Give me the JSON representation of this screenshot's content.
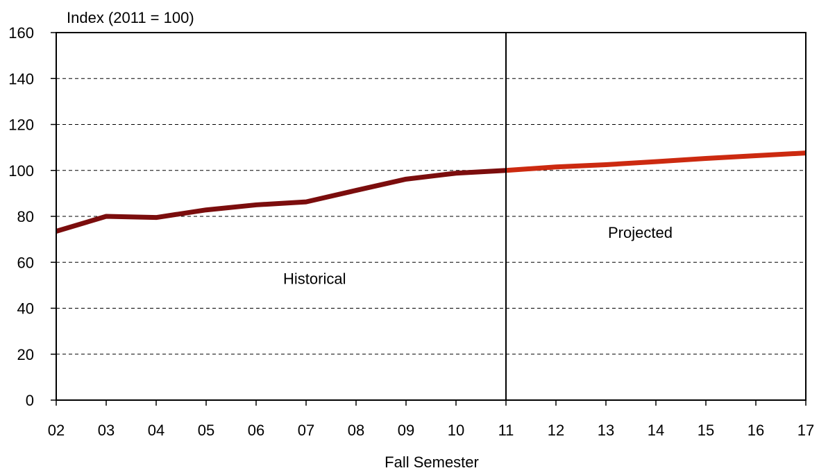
{
  "chart_data": {
    "type": "line",
    "ylabel": "Index (2011 = 100)",
    "xlabel": "Fall Semester",
    "categories": [
      "02",
      "03",
      "04",
      "05",
      "06",
      "07",
      "08",
      "09",
      "10",
      "11",
      "12",
      "13",
      "14",
      "15",
      "16",
      "17"
    ],
    "ylim": [
      0,
      160
    ],
    "yticks": [
      0,
      20,
      40,
      60,
      80,
      100,
      120,
      140,
      160
    ],
    "grid": "horizontal-dashed",
    "divider_at": "11",
    "series": [
      {
        "values": [
          73.5,
          80,
          79.5,
          82.8,
          85,
          86.3,
          91.3,
          96.2,
          98.8,
          100,
          null,
          null,
          null,
          null,
          null,
          null
        ],
        "color": "#7b0d0d"
      },
      {
        "values": [
          null,
          null,
          null,
          null,
          null,
          null,
          null,
          null,
          null,
          100,
          101.5,
          102.5,
          103.8,
          105.2,
          106.4,
          107.6
        ],
        "color": "#cc2a10"
      }
    ],
    "annotations": [
      {
        "text": "Historical",
        "at_category": "08",
        "at_y": 50
      },
      {
        "text": "Projected",
        "at_category": "14.5",
        "at_y": 70
      }
    ]
  }
}
